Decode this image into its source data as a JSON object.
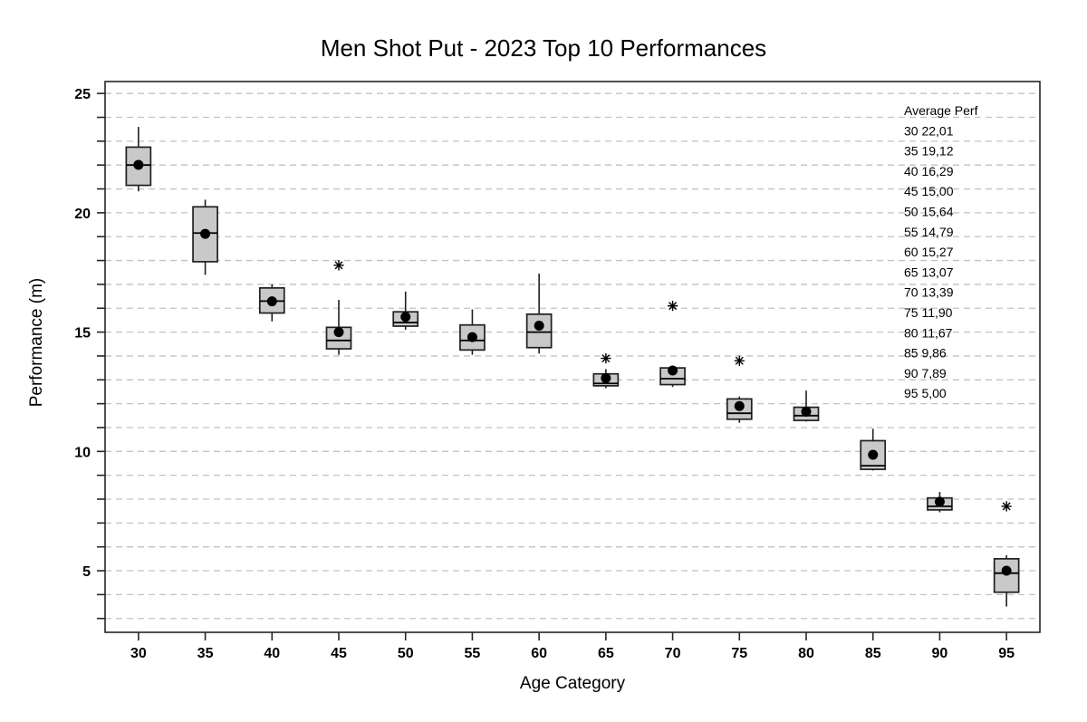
{
  "title": "Men Shot Put - 2023 Top 10 Performances",
  "chart_data": {
    "type": "boxplot",
    "title": "Men Shot Put - 2023 Top 10 Performances",
    "xlabel": "Age Category",
    "ylabel": "Performance (m)",
    "categories": [
      "30",
      "35",
      "40",
      "45",
      "50",
      "55",
      "60",
      "65",
      "70",
      "75",
      "80",
      "85",
      "90",
      "95"
    ],
    "ylim": [
      2.42,
      25.5
    ],
    "ytick_major": [
      5,
      10,
      15,
      20,
      25
    ],
    "ytick_minor_step": 1,
    "grid": "horizontal-dashed-every-1",
    "legend_position": "top-right-inside",
    "series": [
      {
        "category": "30",
        "low": 20.9,
        "q1": 21.15,
        "median": 22.0,
        "q3": 22.75,
        "high": 23.6,
        "mean": 22.01,
        "outliers": []
      },
      {
        "category": "35",
        "low": 17.4,
        "q1": 17.95,
        "median": 19.15,
        "q3": 20.25,
        "high": 20.55,
        "mean": 19.12,
        "outliers": []
      },
      {
        "category": "40",
        "low": 15.45,
        "q1": 15.8,
        "median": 16.3,
        "q3": 16.85,
        "high": 17.0,
        "mean": 16.29,
        "outliers": []
      },
      {
        "category": "45",
        "low": 14.05,
        "q1": 14.3,
        "median": 14.65,
        "q3": 15.2,
        "high": 16.35,
        "mean": 15.0,
        "outliers": [
          17.8
        ]
      },
      {
        "category": "50",
        "low": 15.1,
        "q1": 15.25,
        "median": 15.4,
        "q3": 15.85,
        "high": 16.7,
        "mean": 15.64,
        "outliers": []
      },
      {
        "category": "55",
        "low": 14.05,
        "q1": 14.25,
        "median": 14.65,
        "q3": 15.3,
        "high": 15.95,
        "mean": 14.79,
        "outliers": []
      },
      {
        "category": "60",
        "low": 14.1,
        "q1": 14.35,
        "median": 15.0,
        "q3": 15.75,
        "high": 17.45,
        "mean": 15.27,
        "outliers": []
      },
      {
        "category": "65",
        "low": 12.65,
        "q1": 12.75,
        "median": 12.85,
        "q3": 13.25,
        "high": 13.45,
        "mean": 13.07,
        "outliers": [
          13.9
        ]
      },
      {
        "category": "70",
        "low": 12.7,
        "q1": 12.8,
        "median": 13.05,
        "q3": 13.5,
        "high": 13.55,
        "mean": 13.39,
        "outliers": [
          16.1
        ]
      },
      {
        "category": "75",
        "low": 11.2,
        "q1": 11.35,
        "median": 11.6,
        "q3": 12.2,
        "high": 12.3,
        "mean": 11.9,
        "outliers": [
          13.8
        ]
      },
      {
        "category": "80",
        "low": 11.25,
        "q1": 11.3,
        "median": 11.5,
        "q3": 11.85,
        "high": 12.55,
        "mean": 11.67,
        "outliers": []
      },
      {
        "category": "85",
        "low": 9.2,
        "q1": 9.25,
        "median": 9.4,
        "q3": 10.45,
        "high": 10.95,
        "mean": 9.86,
        "outliers": []
      },
      {
        "category": "90",
        "low": 7.45,
        "q1": 7.55,
        "median": 7.7,
        "q3": 8.05,
        "high": 8.3,
        "mean": 7.89,
        "outliers": []
      },
      {
        "category": "95",
        "low": 3.5,
        "q1": 4.1,
        "median": 4.9,
        "q3": 5.5,
        "high": 5.65,
        "mean": 5.0,
        "outliers": [
          7.7
        ]
      }
    ],
    "annotation": {
      "lines": [
        "Average Perf",
        "30 22,01",
        "35 19,12",
        "40 16,29",
        "45 15,00",
        "50 15,64",
        "55 14,79",
        "60 15,27",
        "65 13,07",
        "70 13,39",
        "75 11,90",
        "80 11,67",
        "85 9,86",
        "90 7,89",
        "95 5,00"
      ]
    },
    "colors": {
      "box_fill": "#c9c9c9",
      "box_stroke": "#1f1f1f",
      "median": "#000000",
      "mean_dot": "#000000",
      "whisker": "#1f1f1f",
      "outlier": "#000000",
      "grid": "#c2c2c2",
      "frame": "#262626",
      "text": "#000000",
      "background": "#ffffff"
    }
  }
}
